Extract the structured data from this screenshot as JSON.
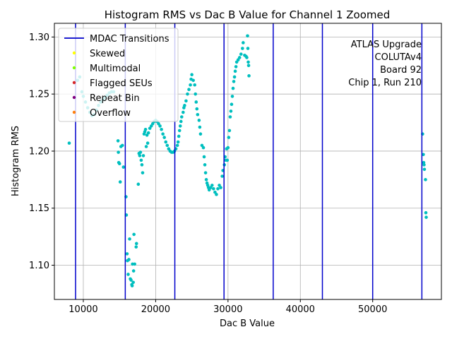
{
  "chart_data": {
    "type": "scatter",
    "title": "Histogram RMS vs Dac B Value for Channel 1 Zoomed",
    "xlabel": "Dac B Value",
    "ylabel": "Histogram RMS",
    "xlim": [
      6000,
      59500
    ],
    "ylim": [
      1.07,
      1.312
    ],
    "grid": true,
    "x_ticks": [
      10000,
      20000,
      30000,
      40000,
      50000
    ],
    "x_tick_labels": [
      "10000",
      "20000",
      "30000",
      "40000",
      "50000"
    ],
    "y_ticks": [
      1.1,
      1.15,
      1.2,
      1.25,
      1.3
    ],
    "y_tick_labels": [
      "1.10",
      "1.15",
      "1.20",
      "1.25",
      "1.30"
    ],
    "mdac_transitions": [
      8930,
      15800,
      22650,
      29450,
      36250,
      43050,
      50000,
      56800
    ],
    "colors": {
      "points": "#00bfbf",
      "mdac": "#0000cc",
      "skewed": "#ffff00",
      "multimodal": "#7fff00",
      "flagged": "#d62728",
      "repeat": "#800080",
      "overflow": "#ff7f0e",
      "grid": "#b0b0b0"
    },
    "legend": {
      "location": "upper-left",
      "entries": [
        {
          "label": "MDAC Transitions",
          "kind": "line",
          "color": "#0000cc"
        },
        {
          "label": "Skewed",
          "kind": "dot",
          "color": "#ffff00"
        },
        {
          "label": "Multimodal",
          "kind": "dot",
          "color": "#7fff00"
        },
        {
          "label": "Flagged SEUs",
          "kind": "dot",
          "color": "#d62728"
        },
        {
          "label": "Repeat Bin",
          "kind": "dot",
          "color": "#800080"
        },
        {
          "label": "Overflow",
          "kind": "dot",
          "color": "#ff7f0e"
        }
      ]
    },
    "annotation": [
      "ATLAS Upgrade",
      "COLUTAv4",
      "Board 92",
      "Chip 1, Run 210"
    ],
    "series": [
      {
        "name": "Histogram RMS",
        "points": [
          [
            8050,
            1.207
          ],
          [
            9200,
            1.262
          ],
          [
            9500,
            1.265
          ],
          [
            9800,
            1.252
          ],
          [
            10000,
            1.248
          ],
          [
            10300,
            1.243
          ],
          [
            10600,
            1.238
          ],
          [
            10900,
            1.234
          ],
          [
            11200,
            1.231
          ],
          [
            11500,
            1.232
          ],
          [
            11800,
            1.236
          ],
          [
            12100,
            1.24
          ],
          [
            12400,
            1.243
          ],
          [
            12700,
            1.245
          ],
          [
            13000,
            1.247
          ],
          [
            13300,
            1.249
          ],
          [
            13600,
            1.251
          ],
          [
            13900,
            1.252
          ],
          [
            14200,
            1.252
          ],
          [
            14800,
            1.209
          ],
          [
            14850,
            1.199
          ],
          [
            14900,
            1.19
          ],
          [
            15000,
            1.189
          ],
          [
            15100,
            1.173
          ],
          [
            15200,
            1.204
          ],
          [
            15400,
            1.205
          ],
          [
            15550,
            1.186
          ],
          [
            15900,
            1.16
          ],
          [
            15950,
            1.144
          ],
          [
            16050,
            1.11
          ],
          [
            16100,
            1.104
          ],
          [
            16200,
            1.092
          ],
          [
            16300,
            1.105
          ],
          [
            16400,
            1.123
          ],
          [
            16500,
            1.088
          ],
          [
            16600,
            1.087
          ],
          [
            16700,
            1.083
          ],
          [
            16750,
            1.082
          ],
          [
            16800,
            1.101
          ],
          [
            16900,
            1.085
          ],
          [
            16950,
            1.095
          ],
          [
            17000,
            1.127
          ],
          [
            17100,
            1.101
          ],
          [
            17300,
            1.116
          ],
          [
            17350,
            1.119
          ],
          [
            17600,
            1.171
          ],
          [
            17700,
            1.198
          ],
          [
            17800,
            1.196
          ],
          [
            17900,
            1.199
          ],
          [
            18000,
            1.192
          ],
          [
            18100,
            1.188
          ],
          [
            18200,
            1.181
          ],
          [
            18300,
            1.196
          ],
          [
            18400,
            1.215
          ],
          [
            18500,
            1.217
          ],
          [
            18600,
            1.219
          ],
          [
            18700,
            1.204
          ],
          [
            18800,
            1.214
          ],
          [
            18900,
            1.207
          ],
          [
            19000,
            1.216
          ],
          [
            19200,
            1.22
          ],
          [
            19400,
            1.222
          ],
          [
            19600,
            1.224
          ],
          [
            19800,
            1.226
          ],
          [
            20000,
            1.227
          ],
          [
            20200,
            1.226
          ],
          [
            20400,
            1.224
          ],
          [
            20600,
            1.222
          ],
          [
            20800,
            1.219
          ],
          [
            21000,
            1.215
          ],
          [
            21200,
            1.212
          ],
          [
            21400,
            1.208
          ],
          [
            21600,
            1.205
          ],
          [
            21800,
            1.202
          ],
          [
            22000,
            1.2
          ],
          [
            22200,
            1.199
          ],
          [
            22400,
            1.199
          ],
          [
            22600,
            1.2
          ],
          [
            22800,
            1.202
          ],
          [
            23000,
            1.205
          ],
          [
            23100,
            1.208
          ],
          [
            23200,
            1.213
          ],
          [
            23300,
            1.218
          ],
          [
            23400,
            1.222
          ],
          [
            23500,
            1.226
          ],
          [
            23600,
            1.23
          ],
          [
            23800,
            1.234
          ],
          [
            23900,
            1.238
          ],
          [
            24000,
            1.24
          ],
          [
            24200,
            1.244
          ],
          [
            24400,
            1.25
          ],
          [
            24600,
            1.254
          ],
          [
            24800,
            1.258
          ],
          [
            24900,
            1.263
          ],
          [
            25000,
            1.267
          ],
          [
            25200,
            1.262
          ],
          [
            25400,
            1.258
          ],
          [
            25500,
            1.25
          ],
          [
            25600,
            1.243
          ],
          [
            25700,
            1.237
          ],
          [
            25800,
            1.232
          ],
          [
            26000,
            1.227
          ],
          [
            26100,
            1.221
          ],
          [
            26200,
            1.215
          ],
          [
            26400,
            1.205
          ],
          [
            26600,
            1.203
          ],
          [
            26700,
            1.195
          ],
          [
            26800,
            1.188
          ],
          [
            26900,
            1.181
          ],
          [
            27000,
            1.175
          ],
          [
            27100,
            1.172
          ],
          [
            27200,
            1.17
          ],
          [
            27300,
            1.168
          ],
          [
            27400,
            1.166
          ],
          [
            27600,
            1.168
          ],
          [
            27800,
            1.17
          ],
          [
            28000,
            1.167
          ],
          [
            28200,
            1.164
          ],
          [
            28400,
            1.162
          ],
          [
            28600,
            1.167
          ],
          [
            28800,
            1.17
          ],
          [
            29000,
            1.168
          ],
          [
            29200,
            1.178
          ],
          [
            29300,
            1.183
          ],
          [
            29500,
            1.188
          ],
          [
            29600,
            1.195
          ],
          [
            29700,
            1.192
          ],
          [
            29800,
            1.202
          ],
          [
            29900,
            1.192
          ],
          [
            30000,
            1.203
          ],
          [
            30100,
            1.212
          ],
          [
            30200,
            1.218
          ],
          [
            30300,
            1.23
          ],
          [
            30400,
            1.235
          ],
          [
            30500,
            1.241
          ],
          [
            30600,
            1.248
          ],
          [
            30700,
            1.255
          ],
          [
            30800,
            1.261
          ],
          [
            30900,
            1.265
          ],
          [
            31000,
            1.27
          ],
          [
            31100,
            1.274
          ],
          [
            31200,
            1.278
          ],
          [
            31400,
            1.28
          ],
          [
            31600,
            1.282
          ],
          [
            31800,
            1.285
          ],
          [
            32000,
            1.29
          ],
          [
            32100,
            1.295
          ],
          [
            32300,
            1.284
          ],
          [
            32500,
            1.283
          ],
          [
            32600,
            1.282
          ],
          [
            32700,
            1.301
          ],
          [
            32750,
            1.29
          ],
          [
            32800,
            1.278
          ],
          [
            32850,
            1.275
          ],
          [
            32900,
            1.266
          ],
          [
            56900,
            1.215
          ],
          [
            57000,
            1.197
          ],
          [
            57050,
            1.19
          ],
          [
            57100,
            1.188
          ],
          [
            57150,
            1.184
          ],
          [
            57300,
            1.175
          ],
          [
            57350,
            1.146
          ],
          [
            57400,
            1.142
          ]
        ]
      }
    ]
  }
}
